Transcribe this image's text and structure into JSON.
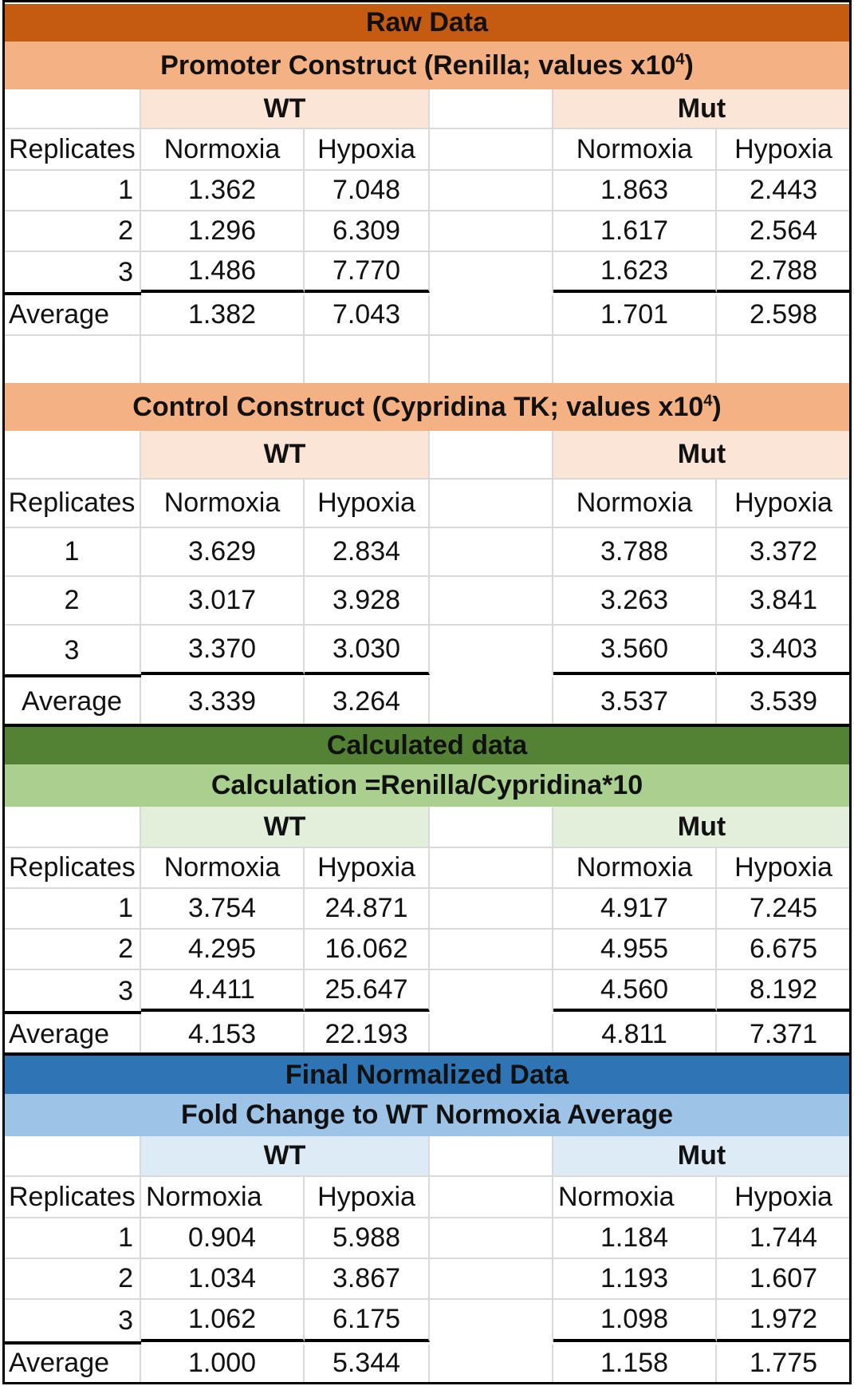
{
  "colors": {
    "raw_header": "#c55a11",
    "raw_sub": "#f4b183",
    "raw_group": "#fbe5d6",
    "calc_header": "#548235",
    "calc_sub": "#a9d08e",
    "calc_group": "#e2efda",
    "final_header": "#2e75b6",
    "final_sub": "#9dc3e6",
    "final_group": "#ddebf7"
  },
  "raw": {
    "title": "Raw Data",
    "promoter": {
      "title": "Promoter Construct (Renilla; values x10",
      "exp": "4",
      "close": ")",
      "wt": "WT",
      "mut": "Mut",
      "replicates": "Replicates",
      "normoxia": "Normoxia",
      "hypoxia": "Hypoxia",
      "rows": [
        {
          "rep": "1",
          "wt_n": "1.362",
          "wt_h": "7.048",
          "mut_n": "1.863",
          "mut_h": "2.443"
        },
        {
          "rep": "2",
          "wt_n": "1.296",
          "wt_h": "6.309",
          "mut_n": "1.617",
          "mut_h": "2.564"
        },
        {
          "rep": "3",
          "wt_n": "1.486",
          "wt_h": "7.770",
          "mut_n": "1.623",
          "mut_h": "2.788"
        }
      ],
      "average": {
        "label": "Average",
        "wt_n": "1.382",
        "wt_h": "7.043",
        "mut_n": "1.701",
        "mut_h": "2.598"
      }
    },
    "control": {
      "title": "Control Construct (Cypridina TK; values x10",
      "exp": "4",
      "close": ")",
      "wt": "WT",
      "mut": "Mut",
      "replicates": "Replicates",
      "normoxia": "Normoxia",
      "hypoxia": "Hypoxia",
      "rows": [
        {
          "rep": "1",
          "wt_n": "3.629",
          "wt_h": "2.834",
          "mut_n": "3.788",
          "mut_h": "3.372"
        },
        {
          "rep": "2",
          "wt_n": "3.017",
          "wt_h": "3.928",
          "mut_n": "3.263",
          "mut_h": "3.841"
        },
        {
          "rep": "3",
          "wt_n": "3.370",
          "wt_h": "3.030",
          "mut_n": "3.560",
          "mut_h": "3.403"
        }
      ],
      "average": {
        "label": "Average",
        "wt_n": "3.339",
        "wt_h": "3.264",
        "mut_n": "3.537",
        "mut_h": "3.539"
      }
    }
  },
  "calc": {
    "title": "Calculated data",
    "subtitle": "Calculation =Renilla/Cypridina*10",
    "wt": "WT",
    "mut": "Mut",
    "replicates": "Replicates",
    "normoxia": "Normoxia",
    "hypoxia": "Hypoxia",
    "rows": [
      {
        "rep": "1",
        "wt_n": "3.754",
        "wt_h": "24.871",
        "mut_n": "4.917",
        "mut_h": "7.245"
      },
      {
        "rep": "2",
        "wt_n": "4.295",
        "wt_h": "16.062",
        "mut_n": "4.955",
        "mut_h": "6.675"
      },
      {
        "rep": "3",
        "wt_n": "4.411",
        "wt_h": "25.647",
        "mut_n": "4.560",
        "mut_h": "8.192"
      }
    ],
    "average": {
      "label": "Average",
      "wt_n": "4.153",
      "wt_h": "22.193",
      "mut_n": "4.811",
      "mut_h": "7.371"
    }
  },
  "final": {
    "title": "Final Normalized Data",
    "subtitle": "Fold Change to WT Normoxia Average",
    "wt": "WT",
    "mut": "Mut",
    "replicates": "Replicates",
    "normoxia": "Normoxia",
    "hypoxia": "Hypoxia",
    "rows": [
      {
        "rep": "1",
        "wt_n": "0.904",
        "wt_h": "5.988",
        "mut_n": "1.184",
        "mut_h": "1.744"
      },
      {
        "rep": "2",
        "wt_n": "1.034",
        "wt_h": "3.867",
        "mut_n": "1.193",
        "mut_h": "1.607"
      },
      {
        "rep": "3",
        "wt_n": "1.062",
        "wt_h": "6.175",
        "mut_n": "1.098",
        "mut_h": "1.972"
      }
    ],
    "average": {
      "label": "Average",
      "wt_n": "1.000",
      "wt_h": "5.344",
      "mut_n": "1.158",
      "mut_h": "1.775"
    }
  }
}
